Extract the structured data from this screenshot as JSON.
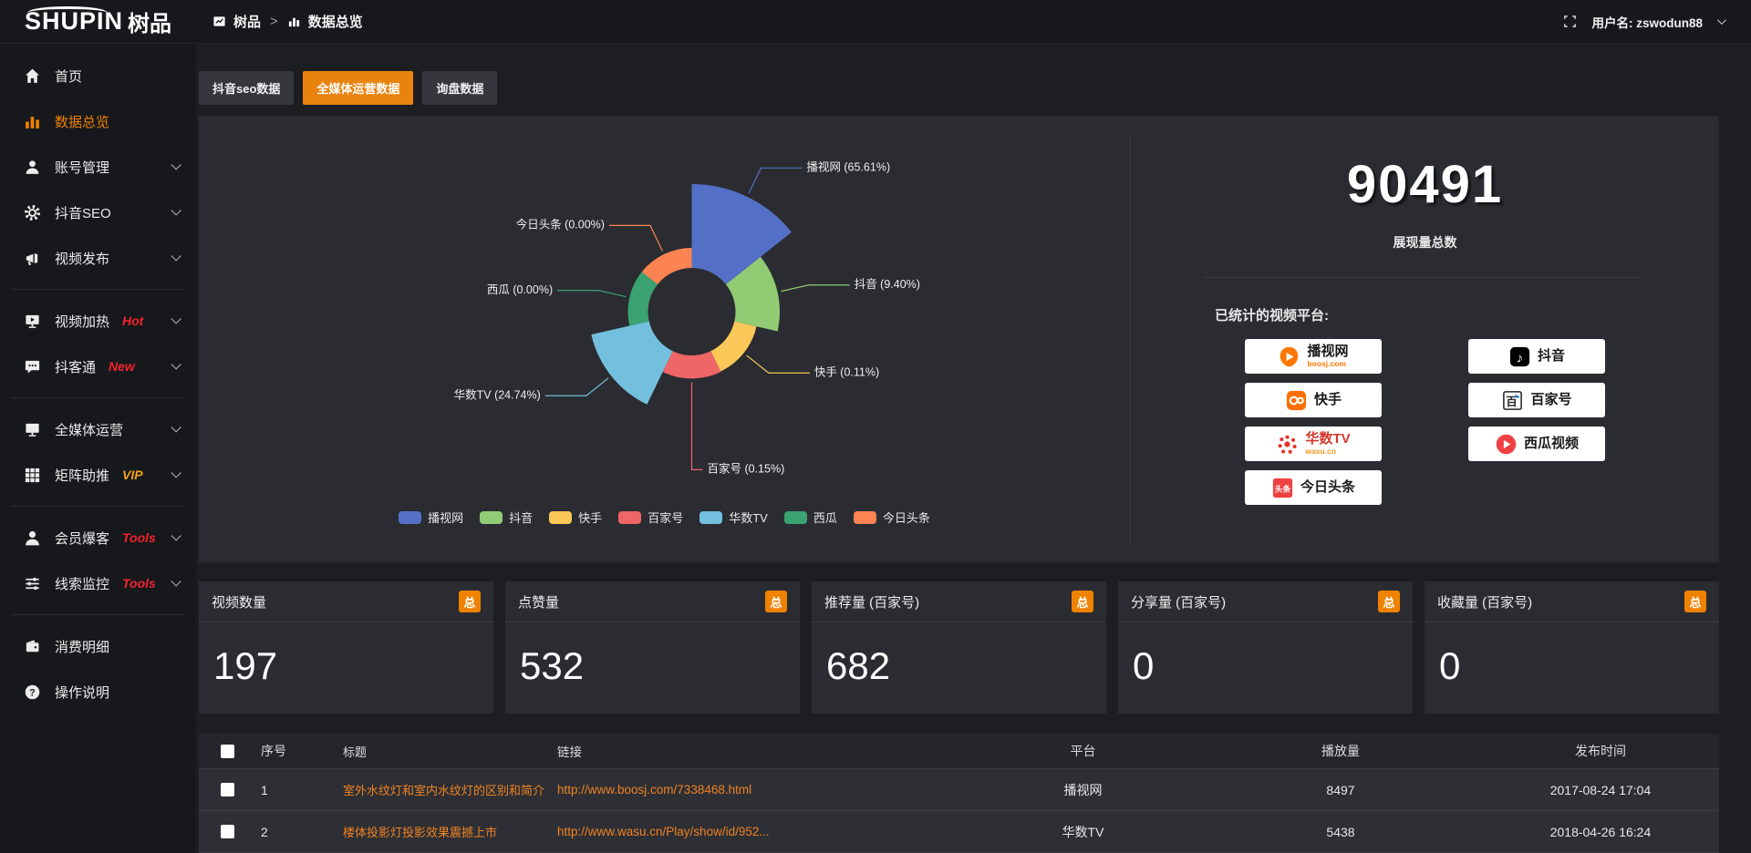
{
  "topbar": {
    "logo_en": "SHUPIN",
    "logo_cn": "树品",
    "breadcrumb": {
      "root": "树品",
      "separator": ">",
      "current": "数据总览"
    },
    "user_label": "用户名: zswodun88"
  },
  "sidebar": {
    "items": [
      {
        "label": "首页",
        "icon": "home"
      },
      {
        "label": "数据总览",
        "icon": "chart",
        "active": true
      },
      {
        "label": "账号管理",
        "icon": "user",
        "chevron": true
      },
      {
        "label": "抖音SEO",
        "icon": "gear",
        "chevron": true
      },
      {
        "label": "视频发布",
        "icon": "megaphone",
        "chevron": true
      },
      {
        "divider": true
      },
      {
        "label": "视频加热",
        "icon": "screen",
        "badge": "Hot",
        "badge_style": "red",
        "chevron": true
      },
      {
        "label": "抖客通",
        "icon": "chat",
        "badge": "New",
        "badge_style": "red",
        "chevron": true
      },
      {
        "divider": true
      },
      {
        "label": "全媒体运营",
        "icon": "monitor",
        "chevron": true
      },
      {
        "label": "矩阵助推",
        "icon": "grid",
        "badge": "VIP",
        "badge_style": "gold",
        "chevron": true
      },
      {
        "divider": true
      },
      {
        "label": "会员爆客",
        "icon": "member",
        "badge": "Tools",
        "badge_style": "red",
        "chevron": true
      },
      {
        "label": "线索监控",
        "icon": "sliders",
        "badge": "Tools",
        "badge_style": "red",
        "chevron": true
      },
      {
        "divider": true
      },
      {
        "label": "消费明细",
        "icon": "wallet"
      },
      {
        "label": "操作说明",
        "icon": "help"
      }
    ]
  },
  "tabs": [
    {
      "label": "抖音seo数据",
      "active": false
    },
    {
      "label": "全媒体运营数据",
      "active": true
    },
    {
      "label": "询盘数据",
      "active": false
    }
  ],
  "chart_data": {
    "type": "pie",
    "variant": "nightingale_rose",
    "legend_position": "bottom",
    "label_format": "{name} ({percent}%)",
    "series": [
      {
        "name": "播视网",
        "percent": 65.61,
        "color": "#5470c6"
      },
      {
        "name": "抖音",
        "percent": 9.4,
        "color": "#91cc75"
      },
      {
        "name": "快手",
        "percent": 0.11,
        "color": "#fac858"
      },
      {
        "name": "百家号",
        "percent": 0.15,
        "color": "#ee6666"
      },
      {
        "name": "华数TV",
        "percent": 24.74,
        "color": "#73c0de"
      },
      {
        "name": "西瓜",
        "percent": 0.0,
        "color": "#3ba272"
      },
      {
        "name": "今日头条",
        "percent": 0.0,
        "color": "#fc8452"
      }
    ]
  },
  "summary": {
    "total_value": "90491",
    "total_label": "展现量总数",
    "platforms_label": "已统计的视频平台:",
    "platforms": [
      {
        "name": "播视网",
        "sub": "boosj.com",
        "icon": "boosj"
      },
      {
        "name": "抖音",
        "icon": "douyin"
      },
      {
        "name": "快手",
        "icon": "kuaishou"
      },
      {
        "name": "百家号",
        "icon": "baijiahao"
      },
      {
        "name": "华数TV",
        "sub": "wasu.cn",
        "icon": "wasu"
      },
      {
        "name": "西瓜视频",
        "icon": "xigua"
      },
      {
        "name": "今日头条",
        "icon": "toutiao"
      }
    ]
  },
  "stat_cards": [
    {
      "label": "视频数量",
      "badge": "总",
      "value": "197"
    },
    {
      "label": "点赞量",
      "badge": "总",
      "value": "532"
    },
    {
      "label": "推荐量 (百家号)",
      "badge": "总",
      "value": "682"
    },
    {
      "label": "分享量 (百家号)",
      "badge": "总",
      "value": "0"
    },
    {
      "label": "收藏量 (百家号)",
      "badge": "总",
      "value": "0"
    }
  ],
  "table": {
    "headers": [
      "序号",
      "标题",
      "链接",
      "平台",
      "播放量",
      "发布时间"
    ],
    "rows": [
      {
        "seq": "1",
        "title": "室外水纹灯和室内水纹灯的区别和简介",
        "link": "http://www.boosj.com/7338468.html",
        "platform": "播视网",
        "plays": "8497",
        "published": "2017-08-24 17:04"
      },
      {
        "seq": "2",
        "title": "楼体投影灯投影效果震撼上市",
        "link": "http://www.wasu.cn/Play/show/id/952...",
        "platform": "华数TV",
        "plays": "5438",
        "published": "2018-04-26 16:24"
      }
    ]
  },
  "colors": {
    "accent": "#ee8211",
    "tab_active": "#e8830d",
    "link": "#ef8222",
    "panel": "#2b2c31",
    "background": "#1d1e22",
    "sidebar": "#17181c",
    "badge_red": "#f5222d",
    "badge_gold": "#efa318"
  }
}
